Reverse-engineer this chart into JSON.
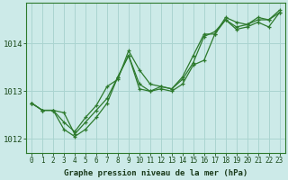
{
  "title": "Graphe pression niveau de la mer (hPa)",
  "bg_color": "#cceae8",
  "grid_color": "#aad4d0",
  "line_color": "#2d7a2d",
  "xlim": [
    -0.5,
    23.5
  ],
  "ylim": [
    1011.7,
    1014.85
  ],
  "yticks": [
    1012,
    1013,
    1014
  ],
  "xticks": [
    0,
    1,
    2,
    3,
    4,
    5,
    6,
    7,
    8,
    9,
    10,
    11,
    12,
    13,
    14,
    15,
    16,
    17,
    18,
    19,
    20,
    21,
    22,
    23
  ],
  "lines": [
    [
      1012.75,
      1012.6,
      1012.6,
      1012.55,
      1012.1,
      1012.35,
      1012.6,
      1012.85,
      1013.3,
      1013.75,
      1013.15,
      1013.0,
      1013.1,
      1013.05,
      1013.25,
      1013.6,
      1014.15,
      1014.25,
      1014.5,
      1014.35,
      1014.4,
      1014.5,
      1014.5,
      1014.65
    ],
    [
      1012.75,
      1012.6,
      1012.6,
      1012.2,
      1012.05,
      1012.2,
      1012.45,
      1012.75,
      1013.3,
      1013.75,
      1013.05,
      1013.0,
      1013.05,
      1013.0,
      1013.15,
      1013.55,
      1013.65,
      1014.2,
      1014.5,
      1014.3,
      1014.35,
      1014.45,
      1014.35,
      1014.65
    ],
    [
      1012.75,
      1012.6,
      1012.6,
      1012.35,
      1012.15,
      1012.45,
      1012.7,
      1013.1,
      1013.25,
      1013.85,
      1013.45,
      1013.15,
      1013.1,
      1013.05,
      1013.3,
      1013.75,
      1014.2,
      1014.2,
      1014.55,
      1014.45,
      1014.4,
      1014.55,
      1014.5,
      1014.7
    ]
  ],
  "title_fontsize": 6.5,
  "ytick_fontsize": 6.5,
  "xtick_fontsize": 5.5
}
